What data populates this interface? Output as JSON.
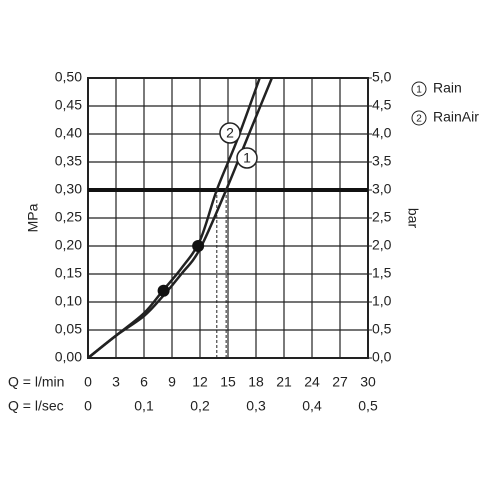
{
  "chart_data": {
    "type": "line",
    "y_label": "MPa",
    "y2_label": "bar",
    "x_row_labels": [
      "Q = l/min",
      "Q = l/sec"
    ],
    "series": [
      {
        "name": "Rain",
        "label": "1",
        "color": "#222222",
        "x": [
          0,
          3,
          6,
          8,
          10,
          12,
          14.8,
          17,
          19.7
        ],
        "values": [
          0,
          0.04,
          0.075,
          0.11,
          0.15,
          0.195,
          0.3,
          0.39,
          0.5
        ]
      },
      {
        "name": "RainAir",
        "label": "2",
        "color": "#222222",
        "x": [
          0,
          3,
          6,
          8,
          10,
          12,
          13.8,
          16,
          18.4
        ],
        "values": [
          0,
          0.04,
          0.08,
          0.12,
          0.16,
          0.21,
          0.3,
          0.39,
          0.5
        ]
      }
    ],
    "points": [
      {
        "x": 8.1,
        "y": 0.12
      },
      {
        "x": 11.8,
        "y": 0.2
      }
    ],
    "reference_line": 0.3,
    "xlim": [
      0,
      30
    ],
    "xticks": [
      0,
      3,
      6,
      9,
      12,
      15,
      18,
      21,
      24,
      27,
      30
    ],
    "xticks2": [
      {
        "value": 0,
        "label": "0"
      },
      {
        "value": 6,
        "label": "0,1"
      },
      {
        "value": 12,
        "label": "0,2"
      },
      {
        "value": 18,
        "label": "0,3"
      },
      {
        "value": 24,
        "label": "0,4"
      },
      {
        "value": 30,
        "label": "0,5"
      }
    ],
    "ylim": [
      0,
      0.5
    ],
    "yticks": [
      {
        "value": 0,
        "label": "0,00"
      },
      {
        "value": 0.05,
        "label": "0,05"
      },
      {
        "value": 0.1,
        "label": "0,10"
      },
      {
        "value": 0.15,
        "label": "0,15"
      },
      {
        "value": 0.2,
        "label": "0,20"
      },
      {
        "value": 0.25,
        "label": "0,25"
      },
      {
        "value": 0.3,
        "label": "0,30"
      },
      {
        "value": 0.35,
        "label": "0,35"
      },
      {
        "value": 0.4,
        "label": "0,40"
      },
      {
        "value": 0.45,
        "label": "0,45"
      },
      {
        "value": 0.5,
        "label": "0,50"
      }
    ],
    "y2lim": [
      0,
      5
    ],
    "y2ticks": [
      {
        "value": 0,
        "label": "0,0"
      },
      {
        "value": 0.5,
        "label": "0,5"
      },
      {
        "value": 1,
        "label": "1,0"
      },
      {
        "value": 1.5,
        "label": "1,5"
      },
      {
        "value": 2,
        "label": "2,0"
      },
      {
        "value": 2.5,
        "label": "2,5"
      },
      {
        "value": 3,
        "label": "3,0"
      },
      {
        "value": 3.5,
        "label": "3,5"
      },
      {
        "value": 4,
        "label": "4,0"
      },
      {
        "value": 4.5,
        "label": "4,5"
      },
      {
        "value": 5,
        "label": "5,0"
      }
    ],
    "grid": true
  }
}
